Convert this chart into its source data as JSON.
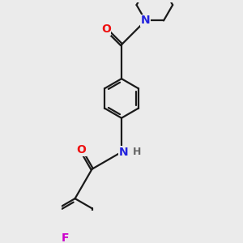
{
  "background_color": "#ebebeb",
  "bond_color": "#1a1a1a",
  "atom_colors": {
    "O": "#ee1111",
    "N": "#2222dd",
    "F": "#cc00cc",
    "H": "#666666",
    "C": "#1a1a1a"
  },
  "line_width": 1.6,
  "figsize": [
    3.0,
    3.0
  ],
  "dpi": 100,
  "xlim": [
    -1.2,
    1.8
  ],
  "ylim": [
    -2.8,
    2.4
  ]
}
